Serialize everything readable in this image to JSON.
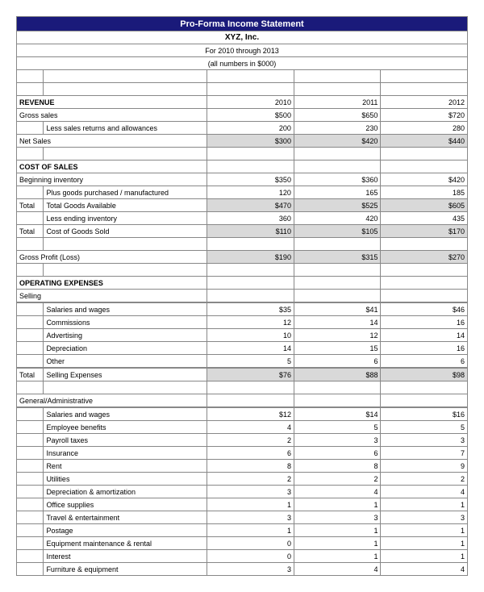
{
  "title": "Pro-Forma Income Statement",
  "company": "XYZ, Inc.",
  "period": "For 2010 through 2013",
  "units": "(all numbers in $000)",
  "years": [
    "2010",
    "2011",
    "2012"
  ],
  "colors": {
    "title_bg": "#1a1a7a",
    "title_fg": "#ffffff",
    "shaded_bg": "#d9d9d9",
    "border": "#888888",
    "bg": "#ffffff"
  },
  "sections": {
    "revenue": {
      "header": "REVENUE",
      "gross_sales": {
        "label": "Gross sales",
        "values": [
          "$500",
          "$650",
          "$720"
        ]
      },
      "returns": {
        "label": "Less sales returns and allowances",
        "values": [
          "200",
          "230",
          "280"
        ]
      },
      "net_sales": {
        "label": "Net Sales",
        "values": [
          "$300",
          "$420",
          "$440"
        ]
      }
    },
    "cost_of_sales": {
      "header": "COST OF SALES",
      "begin_inv": {
        "label": "Beginning inventory",
        "values": [
          "$350",
          "$360",
          "$420"
        ]
      },
      "plus_goods": {
        "label": "Plus goods purchased / manufactured",
        "values": [
          "120",
          "165",
          "185"
        ]
      },
      "total_avail": {
        "label": "Total Goods Available",
        "prefix": "Total",
        "values": [
          "$470",
          "$525",
          "$605"
        ]
      },
      "less_end": {
        "label": "Less ending inventory",
        "values": [
          "360",
          "420",
          "435"
        ]
      },
      "total_cogs": {
        "label": "Cost of Goods Sold",
        "prefix": "Total",
        "values": [
          "$110",
          "$105",
          "$170"
        ]
      }
    },
    "gross_profit": {
      "label": "Gross Profit (Loss)",
      "values": [
        "$190",
        "$315",
        "$270"
      ]
    },
    "operating": {
      "header": "OPERATING EXPENSES",
      "selling": {
        "header": "Selling",
        "rows": [
          {
            "label": "Salaries and wages",
            "values": [
              "$35",
              "$41",
              "$46"
            ]
          },
          {
            "label": "Commissions",
            "values": [
              "12",
              "14",
              "16"
            ]
          },
          {
            "label": "Advertising",
            "values": [
              "10",
              "12",
              "14"
            ]
          },
          {
            "label": "Depreciation",
            "values": [
              "14",
              "15",
              "16"
            ]
          },
          {
            "label": "Other",
            "values": [
              "5",
              "6",
              "6"
            ]
          }
        ],
        "total": {
          "label": "Selling Expenses",
          "prefix": "Total",
          "values": [
            "$76",
            "$88",
            "$98"
          ]
        }
      },
      "general": {
        "header": "General/Administrative",
        "rows": [
          {
            "label": "Salaries and wages",
            "values": [
              "$12",
              "$14",
              "$16"
            ]
          },
          {
            "label": "Employee benefits",
            "values": [
              "4",
              "5",
              "5"
            ]
          },
          {
            "label": "Payroll taxes",
            "values": [
              "2",
              "3",
              "3"
            ]
          },
          {
            "label": "Insurance",
            "values": [
              "6",
              "6",
              "7"
            ]
          },
          {
            "label": "Rent",
            "values": [
              "8",
              "8",
              "9"
            ]
          },
          {
            "label": "Utilities",
            "values": [
              "2",
              "2",
              "2"
            ]
          },
          {
            "label": "Depreciation & amortization",
            "values": [
              "3",
              "4",
              "4"
            ]
          },
          {
            "label": "Office supplies",
            "values": [
              "1",
              "1",
              "1"
            ]
          },
          {
            "label": "Travel & entertainment",
            "values": [
              "3",
              "3",
              "3"
            ]
          },
          {
            "label": "Postage",
            "values": [
              "1",
              "1",
              "1"
            ]
          },
          {
            "label": "Equipment maintenance & rental",
            "values": [
              "0",
              "1",
              "1"
            ]
          },
          {
            "label": "Interest",
            "values": [
              "0",
              "1",
              "1"
            ]
          },
          {
            "label": "Furniture & equipment",
            "values": [
              "3",
              "4",
              "4"
            ]
          }
        ]
      }
    }
  }
}
